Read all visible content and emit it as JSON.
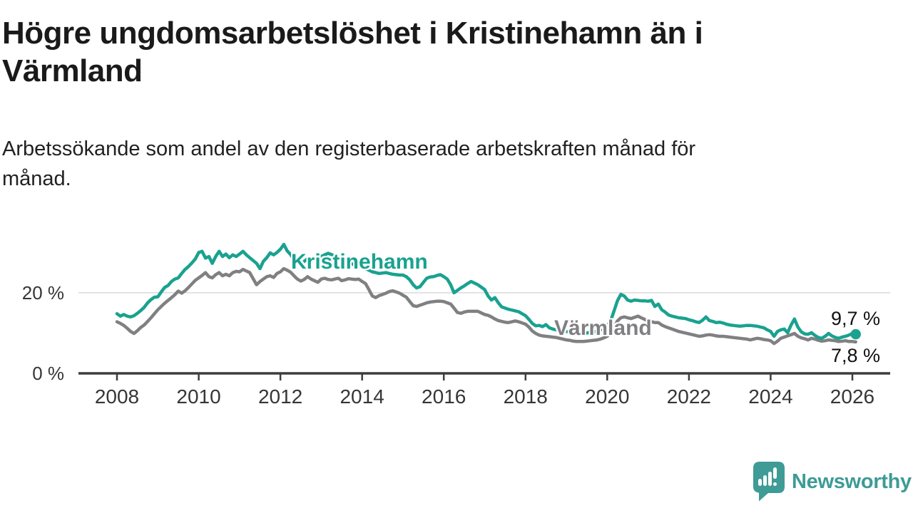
{
  "header": {
    "title_lines": [
      "Högre ungdomsarbetslöshet i Kristinehamn än i",
      "Värmland"
    ],
    "subtitle_lines": [
      "Arbetssökande som andel av den registerbaserade arbetskraften månad för",
      "månad."
    ]
  },
  "colors": {
    "kristinehamn": "#19a28f",
    "varmland": "#808083",
    "logo_teal": "#3e9b95",
    "title_text": "#1a1a1a",
    "axis_text": "#363636",
    "gridline": "#d9d9d9",
    "axis_line": "#3d3d3d",
    "end_label_text": "#111111"
  },
  "footer": {
    "brand": "Newsworthy",
    "logo_icon": "bar-chart-speech-bubble"
  },
  "chart_data": {
    "type": "line",
    "title": "Högre ungdomsarbetslöshet i Kristinehamn än i Värmland",
    "subtitle": "Arbetssökande som andel av den registerbaserade arbetskraften månad för månad.",
    "unit": "%",
    "xlabel": "",
    "ylabel": "",
    "x_start_year": 2008,
    "x_start_month": 1,
    "x_step_months": 1,
    "x_tick_labels": [
      "2008",
      "2010",
      "2012",
      "2014",
      "2016",
      "2018",
      "2020",
      "2022",
      "2024",
      "2026"
    ],
    "y_tick_labels": [
      {
        "value": 0,
        "label": "0 %"
      },
      {
        "value": 20,
        "label": "20 %"
      }
    ],
    "ylim": [
      0,
      34
    ],
    "grid": "single horizontal gridline at 20 %",
    "legend_position": "inline labels on lines",
    "series": [
      {
        "name": "Kristinehamn",
        "color": "#19a28f",
        "end_label": "9,7 %",
        "end_value": 9.7,
        "end_dot": true,
        "values": [
          14.8,
          14.2,
          14.6,
          14.2,
          14.0,
          14.3,
          14.9,
          15.6,
          16.4,
          17.5,
          18.3,
          18.9,
          19.0,
          20.2,
          21.3,
          21.8,
          22.8,
          23.4,
          23.7,
          24.8,
          25.8,
          26.5,
          27.4,
          28.4,
          30.0,
          30.3,
          28.6,
          29.0,
          27.3,
          29.0,
          30.3,
          29.0,
          29.6,
          28.7,
          29.4,
          29.0,
          29.6,
          30.3,
          29.4,
          28.7,
          28.0,
          27.3,
          26.0,
          27.8,
          28.7,
          29.9,
          29.4,
          30.0,
          30.8,
          32.0,
          30.4,
          29.5,
          28.2,
          27.8,
          26.7,
          27.8,
          28.5,
          28.0,
          28.4,
          28.8,
          29.0,
          29.4,
          29.8,
          29.5,
          29.0,
          28.6,
          28.3,
          28.0,
          27.6,
          27.2,
          26.8,
          26.5,
          26.3,
          26.0,
          25.6,
          25.2,
          25.0,
          24.8,
          24.9,
          25.0,
          24.8,
          24.6,
          24.5,
          24.4,
          24.4,
          24.0,
          23.2,
          22.0,
          21.2,
          21.5,
          22.6,
          23.6,
          23.9,
          24.0,
          24.3,
          24.5,
          24.0,
          23.4,
          22.0,
          20.0,
          20.6,
          21.2,
          21.7,
          22.3,
          22.8,
          22.4,
          22.0,
          21.4,
          20.8,
          19.2,
          18.2,
          18.8,
          17.5,
          16.5,
          16.2,
          15.9,
          15.7,
          15.5,
          15.3,
          14.8,
          14.3,
          13.4,
          12.4,
          11.8,
          11.9,
          11.6,
          12.1,
          11.3,
          11.0,
          10.8,
          10.6,
          10.5,
          10.4,
          10.2,
          10.0,
          9.9,
          9.8,
          9.9,
          10.0,
          10.2,
          10.3,
          10.5,
          10.8,
          11.2,
          11.8,
          13.0,
          15.5,
          18.0,
          19.6,
          19.2,
          18.2,
          17.9,
          18.2,
          18.1,
          18.0,
          18.0,
          17.9,
          18.1,
          16.6,
          17.2,
          15.8,
          15.2,
          14.5,
          14.2,
          14.0,
          13.8,
          13.7,
          13.6,
          13.3,
          13.1,
          12.8,
          12.6,
          13.2,
          14.0,
          13.1,
          12.9,
          12.6,
          12.7,
          12.5,
          12.2,
          12.0,
          11.9,
          11.8,
          11.7,
          11.8,
          11.9,
          11.9,
          11.8,
          11.7,
          11.5,
          11.3,
          10.8,
          10.4,
          9.2,
          10.4,
          10.8,
          11.0,
          10.1,
          12.0,
          13.5,
          11.5,
          10.3,
          9.8,
          9.7,
          10.1,
          9.4,
          8.9,
          8.7,
          9.2,
          9.9,
          9.3,
          8.9,
          8.7,
          9.0,
          9.2,
          9.5,
          9.9,
          9.7
        ]
      },
      {
        "name": "Värmland",
        "color": "#808083",
        "end_label": "7,8 %",
        "end_value": 7.8,
        "end_dot": false,
        "values": [
          12.8,
          12.4,
          11.9,
          11.2,
          10.4,
          9.9,
          10.6,
          11.4,
          12.0,
          12.9,
          13.8,
          14.8,
          15.8,
          16.6,
          17.4,
          18.1,
          18.8,
          19.5,
          20.4,
          19.9,
          20.5,
          21.3,
          22.2,
          23.1,
          23.7,
          24.3,
          25.0,
          24.0,
          23.7,
          24.5,
          25.0,
          24.2,
          24.6,
          24.2,
          25.0,
          25.3,
          25.2,
          25.8,
          25.4,
          25.0,
          23.5,
          22.0,
          22.8,
          23.4,
          24.0,
          24.2,
          23.8,
          24.8,
          25.2,
          26.0,
          25.6,
          25.1,
          24.2,
          23.4,
          22.9,
          23.3,
          24.0,
          23.4,
          23.0,
          22.6,
          23.4,
          23.6,
          23.3,
          23.2,
          23.4,
          23.6,
          23.0,
          23.2,
          23.5,
          23.4,
          23.3,
          23.4,
          22.8,
          22.3,
          20.8,
          19.2,
          18.8,
          19.3,
          19.6,
          19.9,
          20.3,
          20.5,
          20.2,
          19.9,
          19.4,
          18.9,
          17.8,
          16.8,
          16.6,
          16.9,
          17.2,
          17.5,
          17.7,
          17.8,
          17.9,
          17.9,
          17.8,
          17.5,
          17.2,
          16.2,
          15.1,
          14.9,
          15.2,
          15.4,
          15.4,
          15.4,
          15.4,
          15.0,
          14.6,
          14.4,
          14.0,
          13.5,
          13.1,
          12.9,
          12.7,
          12.6,
          12.8,
          13.0,
          12.8,
          12.5,
          12.2,
          11.5,
          10.5,
          9.9,
          9.5,
          9.3,
          9.2,
          9.1,
          9.0,
          8.9,
          8.7,
          8.5,
          8.3,
          8.2,
          8.0,
          7.9,
          7.9,
          7.9,
          8.0,
          8.1,
          8.2,
          8.3,
          8.5,
          8.8,
          9.2,
          10.0,
          11.5,
          13.0,
          13.8,
          14.0,
          13.8,
          13.6,
          13.9,
          14.2,
          13.8,
          13.4,
          13.0,
          12.8,
          12.6,
          12.6,
          12.0,
          11.6,
          11.3,
          11.0,
          10.7,
          10.4,
          10.2,
          10.0,
          9.8,
          9.6,
          9.4,
          9.2,
          9.3,
          9.5,
          9.6,
          9.5,
          9.3,
          9.2,
          9.2,
          9.1,
          9.0,
          8.9,
          8.8,
          8.7,
          8.6,
          8.5,
          8.3,
          8.5,
          8.7,
          8.6,
          8.4,
          8.3,
          8.1,
          7.4,
          8.0,
          8.7,
          9.0,
          9.3,
          9.6,
          9.9,
          9.2,
          8.8,
          8.6,
          8.3,
          8.7,
          8.5,
          8.2,
          8.0,
          8.1,
          8.3,
          8.2,
          8.1,
          7.9,
          8.0,
          8.1,
          7.9,
          7.9,
          7.8
        ]
      }
    ]
  }
}
